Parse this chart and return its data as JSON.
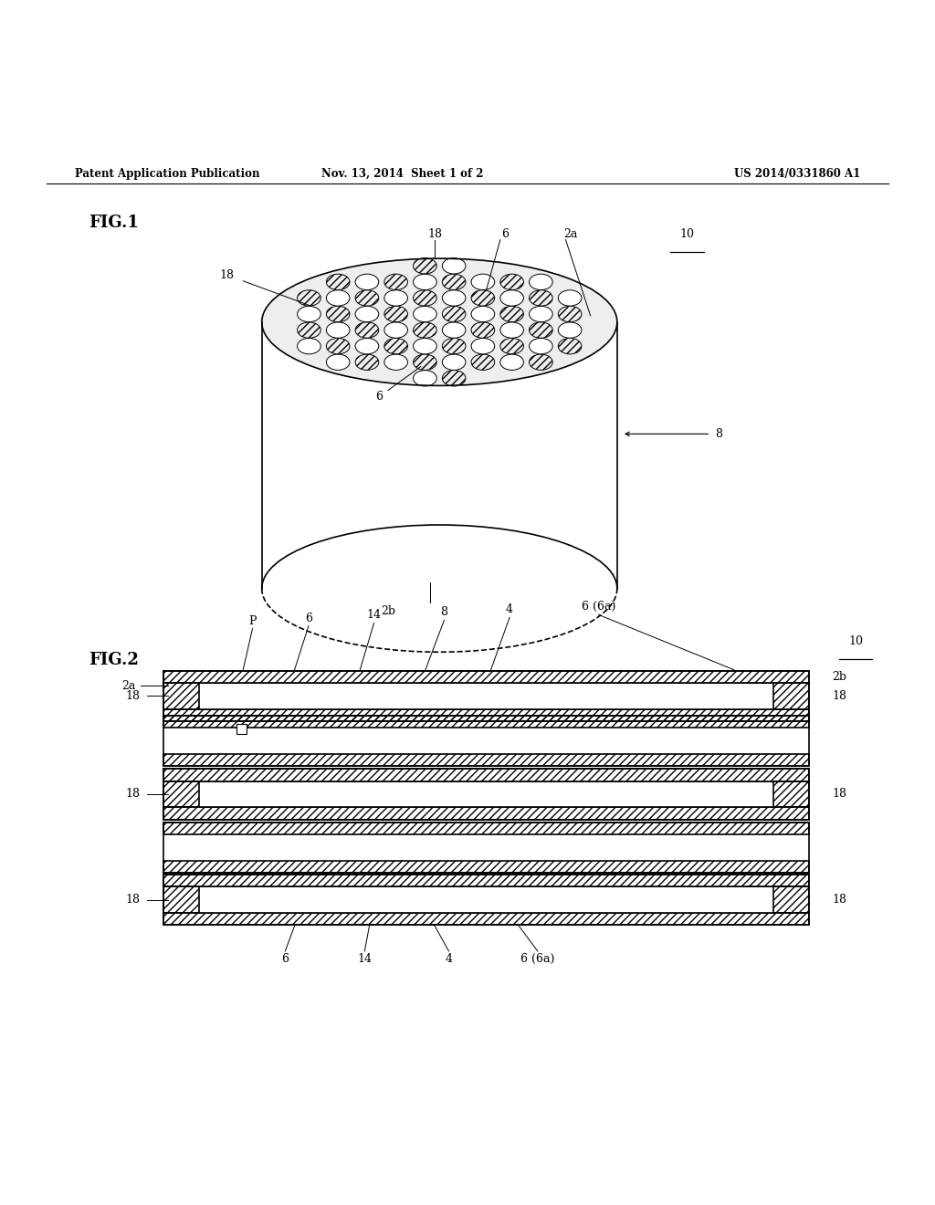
{
  "header_left": "Patent Application Publication",
  "header_mid": "Nov. 13, 2014  Sheet 1 of 2",
  "header_right": "US 2014/0331860 A1",
  "fig1_label": "FIG.1",
  "fig2_label": "FIG.2",
  "bg_color": "#ffffff",
  "line_color": "#000000"
}
